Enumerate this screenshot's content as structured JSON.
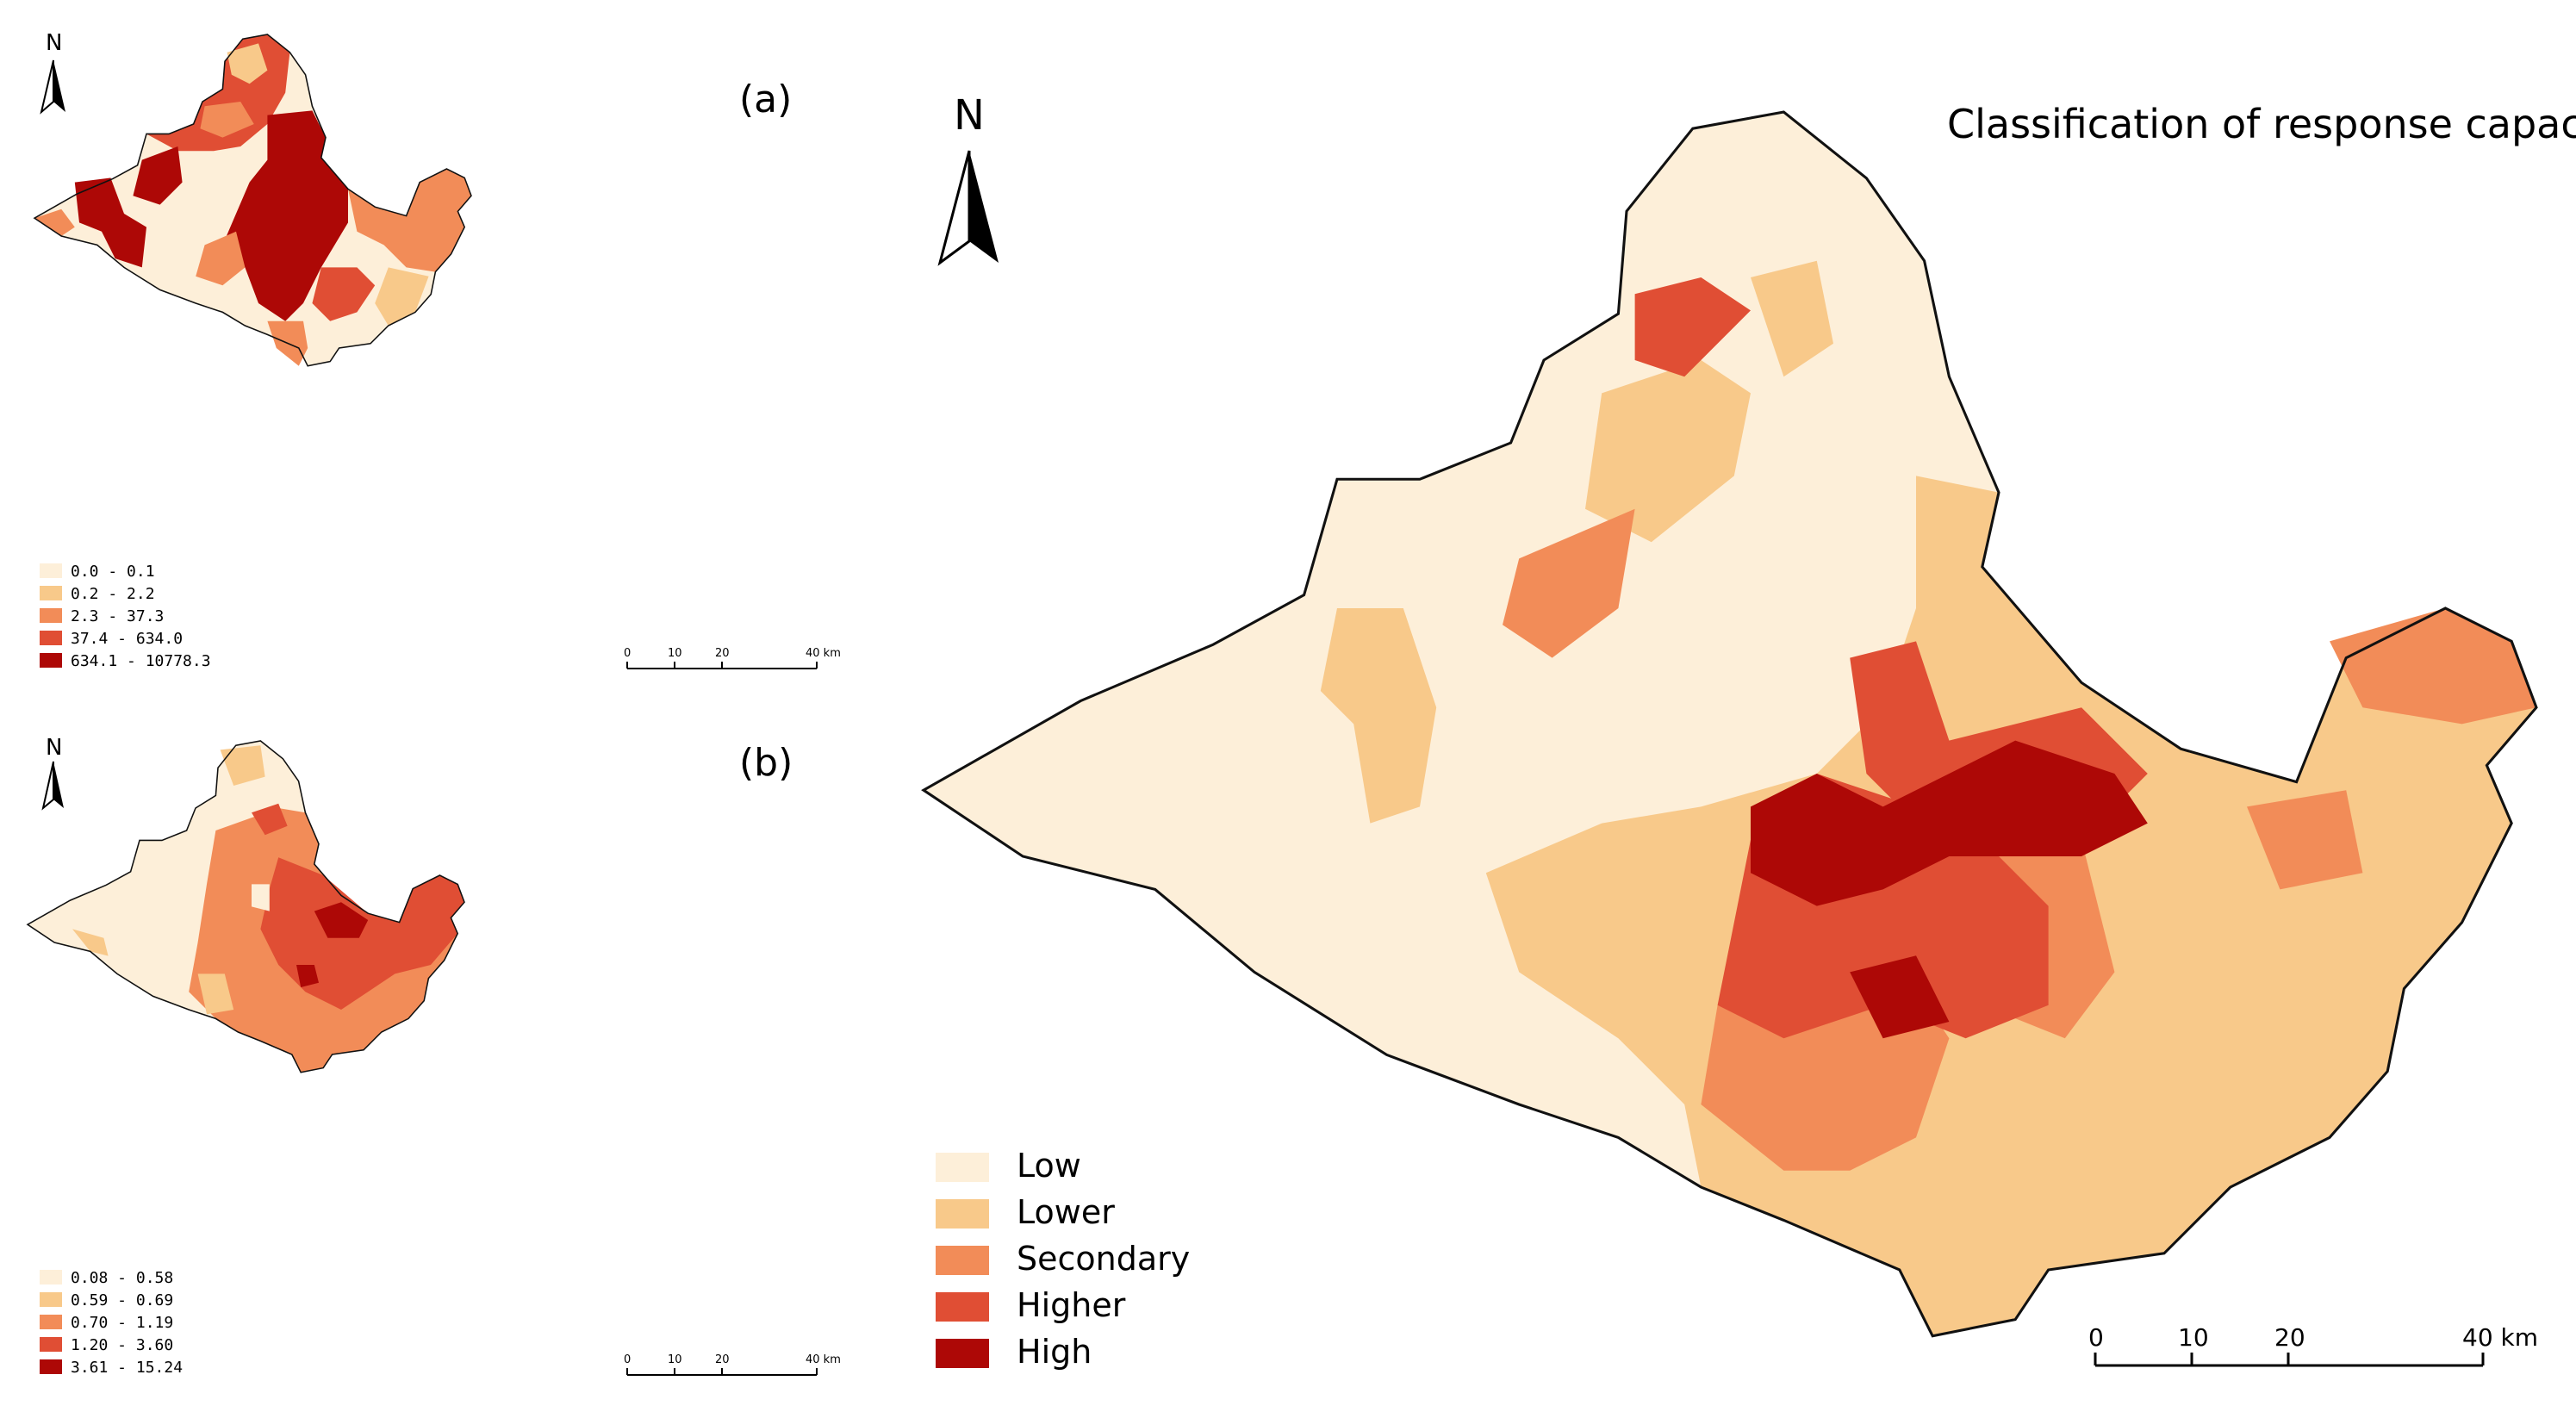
{
  "palette": {
    "c0": "#fdefd9",
    "c1": "#f8c98a",
    "c2": "#f28c58",
    "c3": "#e04e34",
    "c4": "#ad0806",
    "boundary": "#111111",
    "internal": "#ffffff"
  },
  "north_label": "N",
  "panel_a": {
    "label": "(a)",
    "legend": [
      "0.0 - 0.1",
      "0.2 - 2.2",
      "2.3 - 37.3",
      "37.4 - 634.0",
      "634.1 - 10778.3"
    ],
    "scale": [
      "0",
      "10",
      "20",
      "40 km"
    ]
  },
  "panel_b": {
    "label": "(b)",
    "legend": [
      "0.08 - 0.58",
      "0.59 - 0.69",
      "0.70 - 1.19",
      "1.20 - 3.60",
      "3.61 - 15.24"
    ],
    "scale": [
      "0",
      "10",
      "20",
      "40 km"
    ]
  },
  "main_map": {
    "title": "Classification of response capacity",
    "legend": [
      "Low",
      "Lower",
      "Secondary",
      "Higher",
      "High"
    ],
    "scale": [
      "0",
      "10",
      "20",
      "40 km"
    ]
  }
}
